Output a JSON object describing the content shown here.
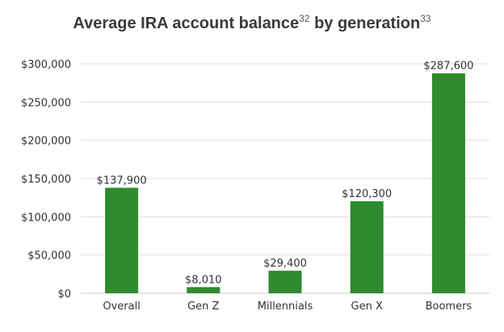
{
  "title": {
    "main": "Average IRA account balance",
    "sup1": "32",
    "mid": " by generation",
    "sup2": "33"
  },
  "chart_data": {
    "type": "bar",
    "categories": [
      "Overall",
      "Gen Z",
      "Millennials",
      "Gen X",
      "Boomers"
    ],
    "values": [
      137900,
      8010,
      29400,
      120300,
      287600
    ],
    "data_labels": [
      "$137,900",
      "$8,010",
      "$29,400",
      "$120,300",
      "$287,600"
    ],
    "ylim": [
      0,
      300000
    ],
    "yticks": [
      0,
      50000,
      100000,
      150000,
      200000,
      250000,
      300000
    ],
    "ytick_labels": [
      "$0",
      "$50,000",
      "$100,000",
      "$150,000",
      "$200,000",
      "$250,000",
      "$300,000"
    ],
    "grid": true,
    "bar_color": "#2e8b2e",
    "grid_color": "#e0e0e0"
  }
}
